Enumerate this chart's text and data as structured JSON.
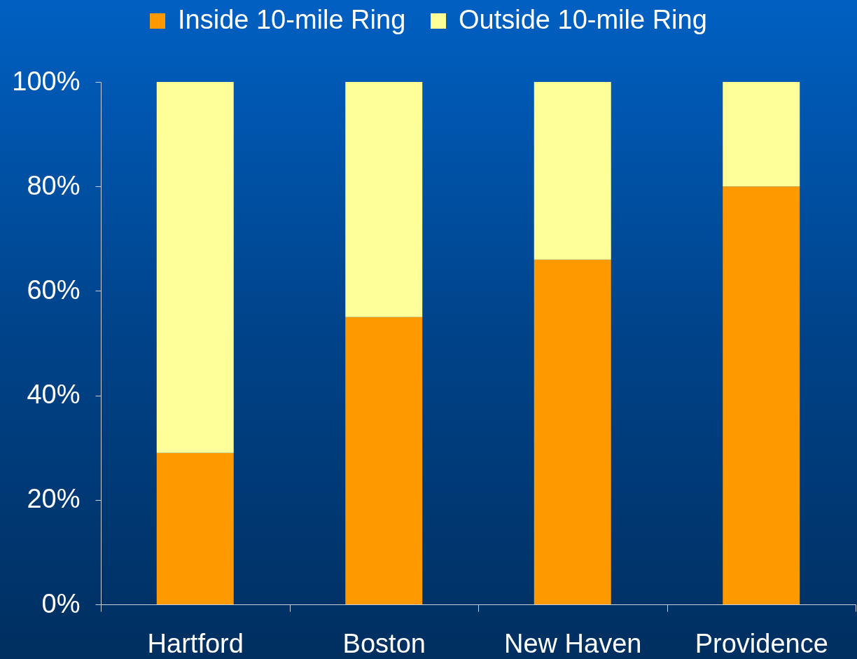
{
  "chart_data": {
    "type": "bar",
    "stacked": true,
    "categories": [
      "Hartford",
      "Boston",
      "New Haven",
      "Providence"
    ],
    "series": [
      {
        "name": "Inside 10-mile Ring",
        "color": "#ff9900",
        "values": [
          29,
          55,
          66,
          80
        ]
      },
      {
        "name": "Outside 10-mile Ring",
        "color": "#ffff99",
        "values": [
          71,
          45,
          34,
          20
        ]
      }
    ],
    "ylim": [
      0,
      100
    ],
    "yticks": [
      {
        "value": 0,
        "label": "0%"
      },
      {
        "value": 20,
        "label": "20%"
      },
      {
        "value": 40,
        "label": "40%"
      },
      {
        "value": 60,
        "label": "60%"
      },
      {
        "value": 80,
        "label": "80%"
      },
      {
        "value": 100,
        "label": "100%"
      }
    ],
    "grid": false,
    "legend": "top"
  }
}
